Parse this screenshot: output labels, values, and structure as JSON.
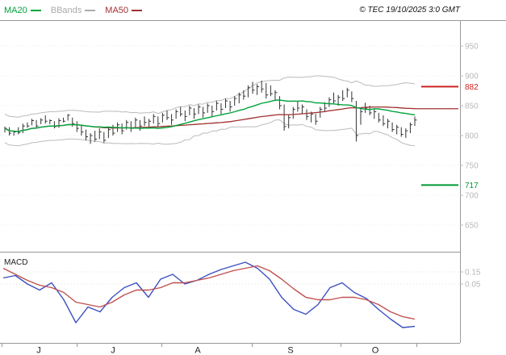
{
  "header": {
    "legend": [
      {
        "label": "MA20",
        "color": "#00a33c"
      },
      {
        "label": "BBands",
        "color": "#aaaaaa"
      },
      {
        "label": "MA50",
        "color": "#a03030"
      }
    ],
    "copyright": "© TEC 19/10/2025 3:0 GMT"
  },
  "price_axis": {
    "ticks": [
      950,
      900,
      850,
      800,
      750,
      700,
      650
    ],
    "label_color": "#b8b8b8"
  },
  "levels": [
    {
      "value": 882,
      "label": "882",
      "color": "#cc2222"
    },
    {
      "value": 717,
      "label": "717",
      "color": "#009933"
    }
  ],
  "macd": {
    "label": "MACD",
    "ticks": [
      0.15,
      0.05
    ],
    "tick_labels": [
      "0.15",
      "0.05"
    ],
    "label_color": "#b8b8b8"
  },
  "x_axis": {
    "labels": [
      "J",
      "J",
      "A",
      "S",
      "O"
    ],
    "positions": [
      48,
      140,
      245,
      360,
      465
    ],
    "tick_positions": [
      2,
      95,
      200,
      312,
      422,
      516
    ]
  },
  "chart_data": [
    {
      "type": "bar",
      "subtype": "ohlc-hlc-bars",
      "ylim": [
        650,
        950
      ],
      "bar_color": "#333333",
      "band_color": "#bbbbbb",
      "bars_hlc": [
        [
          815,
          805,
          812
        ],
        [
          814,
          800,
          804
        ],
        [
          808,
          800,
          806
        ],
        [
          814,
          802,
          805
        ],
        [
          820,
          804,
          816
        ],
        [
          822,
          813,
          816
        ],
        [
          828,
          817,
          825
        ],
        [
          826,
          813,
          816
        ],
        [
          829,
          819,
          826
        ],
        [
          834,
          820,
          824
        ],
        [
          827,
          819,
          825
        ],
        [
          824,
          812,
          815
        ],
        [
          829,
          813,
          825
        ],
        [
          830,
          822,
          824
        ],
        [
          836,
          825,
          834
        ],
        [
          830,
          815,
          820
        ],
        [
          824,
          806,
          812
        ],
        [
          818,
          800,
          806
        ],
        [
          810,
          792,
          798
        ],
        [
          804,
          786,
          800
        ],
        [
          808,
          790,
          794
        ],
        [
          812,
          794,
          806
        ],
        [
          806,
          788,
          792
        ],
        [
          814,
          796,
          810
        ],
        [
          818,
          800,
          804
        ],
        [
          822,
          806,
          818
        ],
        [
          820,
          802,
          808
        ],
        [
          826,
          810,
          822
        ],
        [
          824,
          806,
          812
        ],
        [
          830,
          814,
          826
        ],
        [
          826,
          808,
          816
        ],
        [
          832,
          816,
          822
        ],
        [
          828,
          812,
          824
        ],
        [
          836,
          820,
          832
        ],
        [
          832,
          814,
          820
        ],
        [
          838,
          822,
          834
        ],
        [
          842,
          826,
          830
        ],
        [
          836,
          818,
          826
        ],
        [
          844,
          828,
          840
        ],
        [
          848,
          832,
          836
        ],
        [
          842,
          824,
          832
        ],
        [
          850,
          834,
          846
        ],
        [
          846,
          828,
          836
        ],
        [
          852,
          836,
          848
        ],
        [
          848,
          830,
          838
        ],
        [
          854,
          838,
          850
        ],
        [
          850,
          832,
          840
        ],
        [
          858,
          842,
          854
        ],
        [
          854,
          836,
          844
        ],
        [
          862,
          846,
          858
        ],
        [
          858,
          840,
          848
        ],
        [
          866,
          850,
          862
        ],
        [
          872,
          854,
          868
        ],
        [
          876,
          860,
          866
        ],
        [
          884,
          864,
          880
        ],
        [
          890,
          870,
          876
        ],
        [
          886,
          868,
          882
        ],
        [
          892,
          872,
          878
        ],
        [
          888,
          862,
          868
        ],
        [
          884,
          866,
          870
        ],
        [
          876,
          858,
          872
        ],
        [
          866,
          844,
          850
        ],
        [
          852,
          808,
          815
        ],
        [
          835,
          812,
          830
        ],
        [
          848,
          828,
          844
        ],
        [
          858,
          840,
          846
        ],
        [
          852,
          836,
          848
        ],
        [
          844,
          826,
          832
        ],
        [
          840,
          822,
          836
        ],
        [
          836,
          818,
          824
        ],
        [
          848,
          830,
          844
        ],
        [
          856,
          840,
          846
        ],
        [
          864,
          848,
          860
        ],
        [
          872,
          854,
          858
        ],
        [
          868,
          850,
          864
        ],
        [
          876,
          858,
          862
        ],
        [
          880,
          864,
          876
        ],
        [
          874,
          856,
          862
        ],
        [
          858,
          790,
          800
        ],
        [
          845,
          818,
          840
        ],
        [
          855,
          838,
          846
        ],
        [
          850,
          834,
          838
        ],
        [
          845,
          828,
          840
        ],
        [
          838,
          822,
          826
        ],
        [
          834,
          816,
          820
        ],
        [
          828,
          812,
          824
        ],
        [
          822,
          806,
          810
        ],
        [
          818,
          802,
          814
        ],
        [
          814,
          798,
          802
        ],
        [
          812,
          796,
          808
        ],
        [
          822,
          804,
          818
        ],
        [
          832,
          816,
          826
        ]
      ],
      "overlays": [
        {
          "name": "MA20",
          "window": 20,
          "color": "#00a33c"
        },
        {
          "name": "MA50",
          "window": 50,
          "color": "#a03030"
        },
        {
          "name": "BBands",
          "window": 20,
          "color": "#bbbbbb"
        }
      ],
      "levels": [
        882,
        717
      ],
      "x_labels": [
        "J",
        "J",
        "A",
        "S",
        "O"
      ]
    },
    {
      "type": "line",
      "name": "MACD",
      "ylim": [
        -0.45,
        0.28
      ],
      "series": [
        {
          "name": "MACD",
          "color": "#3a50c0",
          "values": [
            0.1,
            0.12,
            0.05,
            0.0,
            0.06,
            -0.08,
            -0.27,
            -0.14,
            -0.18,
            -0.06,
            0.02,
            0.06,
            -0.06,
            0.09,
            0.13,
            0.05,
            0.08,
            0.13,
            0.17,
            0.2,
            0.23,
            0.18,
            0.09,
            -0.06,
            -0.16,
            -0.2,
            -0.12,
            0.02,
            0.06,
            -0.02,
            -0.07,
            -0.16,
            -0.24,
            -0.31,
            -0.3
          ]
        },
        {
          "name": "Signal",
          "color": "#c05050",
          "values": [
            0.18,
            0.13,
            0.08,
            0.04,
            0.02,
            -0.02,
            -0.1,
            -0.12,
            -0.14,
            -0.1,
            -0.04,
            0.0,
            0.0,
            0.02,
            0.06,
            0.06,
            0.08,
            0.1,
            0.13,
            0.16,
            0.18,
            0.2,
            0.16,
            0.09,
            0.01,
            -0.06,
            -0.08,
            -0.08,
            -0.06,
            -0.06,
            -0.08,
            -0.12,
            -0.18,
            -0.22,
            -0.24
          ]
        }
      ]
    }
  ]
}
